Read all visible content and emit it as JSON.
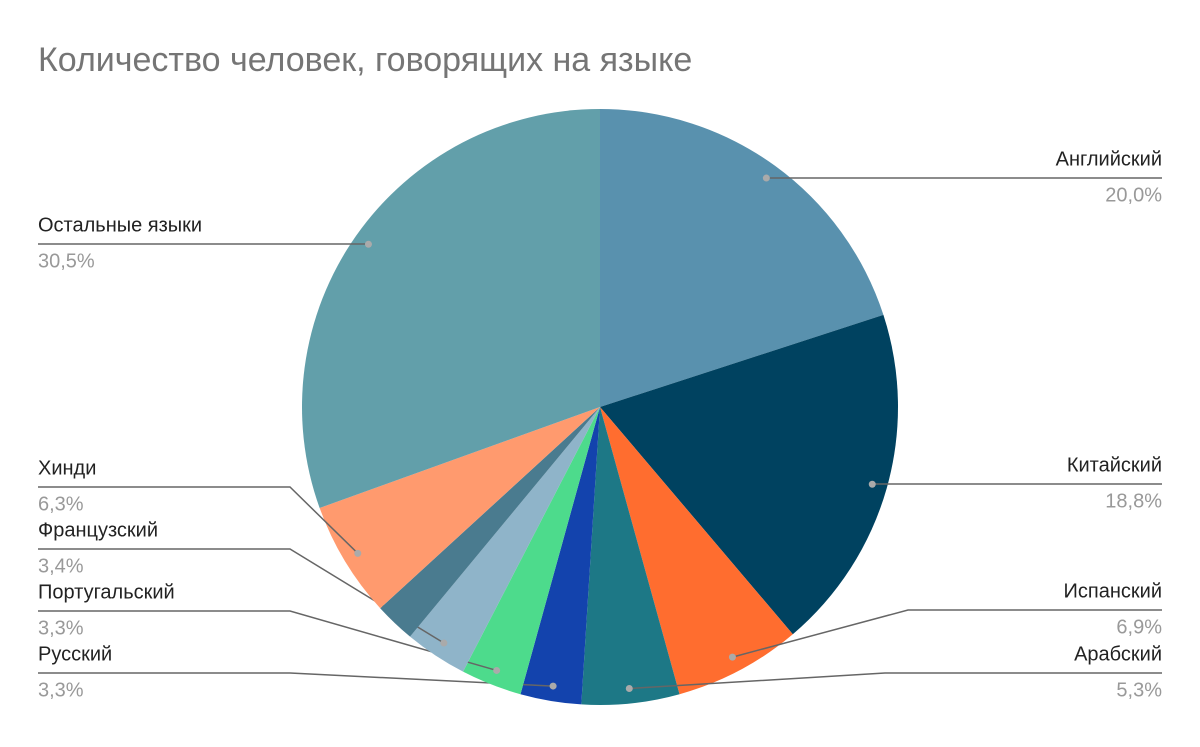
{
  "chart_data": {
    "type": "pie",
    "title": "Количество человек, говорящих на языке",
    "categories": [
      "Английский",
      "Китайский",
      "Испанский",
      "Арабский",
      "Русский",
      "Португальский",
      "Французский",
      null,
      "Хинди",
      "Остальные языки"
    ],
    "values": [
      20.0,
      18.8,
      6.9,
      5.3,
      3.3,
      3.3,
      3.4,
      2.2,
      6.3,
      30.5
    ],
    "value_labels": [
      "20,0%",
      "18,8%",
      "6,9%",
      "5,3%",
      "3,3%",
      "3,3%",
      "3,4%",
      null,
      "6,3%",
      "30,5%"
    ],
    "colors": [
      "#5991ae",
      "#004260",
      "#ff6d2f",
      "#1d7886",
      "#1343ad",
      "#4ddb8c",
      "#8fb4c9",
      "#4a7b8f",
      "#ff9a6e",
      "#629faa"
    ]
  }
}
